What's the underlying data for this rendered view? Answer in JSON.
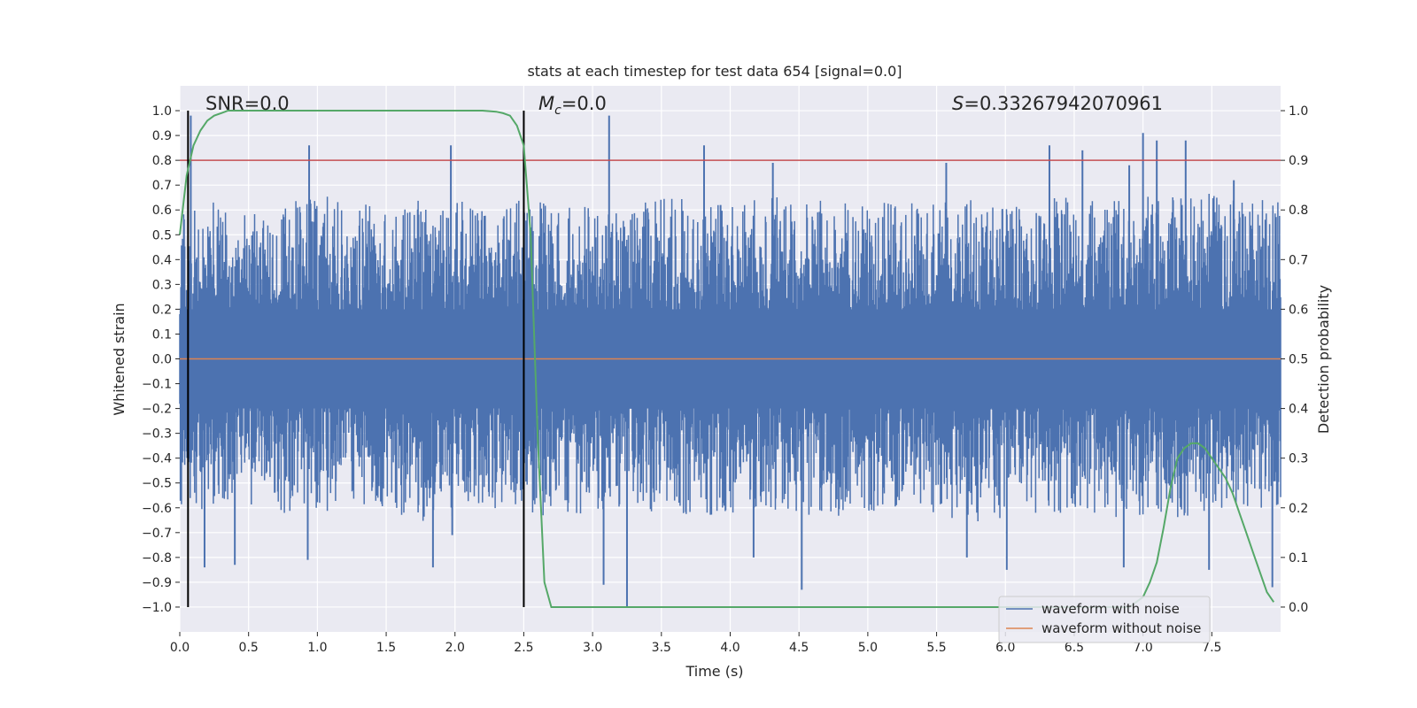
{
  "chart_data": {
    "type": "line",
    "title": "stats at each timestep for test data 654 [signal=0.0]",
    "xlabel": "Time (s)",
    "ylabel": "Whitened strain",
    "y2label": "Detection probability",
    "xlim": [
      0,
      8
    ],
    "ylim": [
      -1.1,
      1.1
    ],
    "y2lim": [
      -0.05,
      1.05
    ],
    "xticks": [
      "0.0",
      "0.5",
      "1.0",
      "1.5",
      "2.0",
      "2.5",
      "3.0",
      "3.5",
      "4.0",
      "4.5",
      "5.0",
      "5.5",
      "6.0",
      "6.5",
      "7.0",
      "7.5"
    ],
    "yticks": [
      "1.0",
      "0.9",
      "0.8",
      "0.7",
      "0.6",
      "0.5",
      "0.4",
      "0.3",
      "0.2",
      "0.1",
      "0.0",
      "−0.1",
      "−0.2",
      "−0.3",
      "−0.4",
      "−0.5",
      "−0.6",
      "−0.7",
      "−0.8",
      "−0.9",
      "−1.0"
    ],
    "y2ticks": [
      "1.0",
      "0.9",
      "0.8",
      "0.7",
      "0.6",
      "0.5",
      "0.4",
      "0.3",
      "0.2",
      "0.1",
      "0.0"
    ],
    "annotations": {
      "snr": "SNR=0.0",
      "mc_symbol": "M",
      "mc_sub": "c",
      "mc_value": "=0.0",
      "s_symbol": "S",
      "s_value": "=0.33267942070961"
    },
    "threshold": {
      "y": 0.8,
      "color": "#c44e52"
    },
    "vertical_lines": [
      {
        "x": 0.06,
        "ymin": -1.0,
        "ymax": 1.0
      },
      {
        "x": 2.5,
        "ymin": -1.0,
        "ymax": 1.0
      }
    ],
    "legend": {
      "placement": "lower-right",
      "entries": [
        {
          "label": "waveform with noise",
          "color": "#4c72b0"
        },
        {
          "label": "waveform without noise",
          "color": "#dd8452"
        }
      ]
    },
    "series": [
      {
        "name": "waveform with noise",
        "color": "#4c72b0",
        "envelope": {
          "x": [
            0.0,
            0.25,
            0.5,
            0.75,
            1.0,
            1.25,
            1.5,
            1.75,
            2.0,
            2.25,
            2.5,
            2.75,
            3.0,
            3.25,
            3.5,
            3.75,
            4.0,
            4.25,
            4.5,
            4.75,
            5.0,
            5.25,
            5.5,
            5.75,
            6.0,
            6.25,
            6.5,
            6.75,
            7.0,
            7.25,
            7.5,
            7.75,
            8.0
          ],
          "max": [
            0.6,
            0.66,
            0.6,
            0.64,
            0.66,
            0.64,
            0.6,
            0.64,
            0.65,
            0.62,
            0.64,
            0.62,
            0.63,
            0.6,
            0.66,
            0.64,
            0.63,
            0.65,
            0.66,
            0.64,
            0.62,
            0.64,
            0.63,
            0.66,
            0.64,
            0.66,
            0.65,
            0.64,
            0.66,
            0.65,
            0.68,
            0.66,
            0.64
          ],
          "min": [
            -0.6,
            -0.62,
            -0.6,
            -0.64,
            -0.62,
            -0.6,
            -0.63,
            -0.66,
            -0.64,
            -0.6,
            -0.62,
            -0.64,
            -0.63,
            -0.6,
            -0.62,
            -0.64,
            -0.62,
            -0.63,
            -0.66,
            -0.64,
            -0.62,
            -0.6,
            -0.63,
            -0.66,
            -0.65,
            -0.63,
            -0.62,
            -0.64,
            -0.63,
            -0.65,
            -0.62,
            -0.6,
            -0.6
          ]
        },
        "spikes": [
          [
            0.08,
            0.98
          ],
          [
            0.18,
            -0.84
          ],
          [
            0.4,
            -0.83
          ],
          [
            0.94,
            0.86
          ],
          [
            0.93,
            -0.81
          ],
          [
            1.84,
            -0.84
          ],
          [
            1.97,
            0.86
          ],
          [
            1.98,
            -0.71
          ],
          [
            3.12,
            0.98
          ],
          [
            2.57,
            -0.57
          ],
          [
            3.08,
            -0.91
          ],
          [
            3.25,
            -1.0
          ],
          [
            3.81,
            0.86
          ],
          [
            3.93,
            0.62
          ],
          [
            4.17,
            -0.8
          ],
          [
            4.31,
            0.79
          ],
          [
            4.52,
            -0.93
          ],
          [
            5.57,
            0.79
          ],
          [
            5.72,
            -0.8
          ],
          [
            6.01,
            -0.85
          ],
          [
            6.32,
            0.86
          ],
          [
            6.56,
            0.84
          ],
          [
            6.86,
            -0.84
          ],
          [
            6.9,
            0.78
          ],
          [
            7.0,
            0.91
          ],
          [
            7.1,
            0.88
          ],
          [
            7.31,
            0.88
          ],
          [
            7.48,
            -0.85
          ],
          [
            7.66,
            0.72
          ],
          [
            7.94,
            -0.92
          ]
        ]
      },
      {
        "name": "waveform without noise",
        "color": "#dd8452",
        "x": [
          0,
          8
        ],
        "y": [
          0,
          0
        ]
      },
      {
        "name": "",
        "axis": "right",
        "color": "#55a868",
        "x": [
          0.0,
          0.05,
          0.1,
          0.15,
          0.2,
          0.25,
          0.3,
          0.35,
          0.4,
          0.5,
          0.7,
          1.0,
          1.5,
          2.0,
          2.2,
          2.3,
          2.35,
          2.4,
          2.45,
          2.5,
          2.55,
          2.6,
          2.65,
          2.7,
          2.8,
          3.0,
          4.0,
          5.0,
          6.0,
          6.5,
          6.9,
          7.0,
          7.05,
          7.1,
          7.15,
          7.2,
          7.25,
          7.3,
          7.35,
          7.4,
          7.45,
          7.5,
          7.55,
          7.6,
          7.65,
          7.7,
          7.75,
          7.8,
          7.85,
          7.9,
          7.95
        ],
        "y": [
          0.75,
          0.87,
          0.93,
          0.96,
          0.98,
          0.99,
          0.995,
          1.0,
          1.0,
          1.0,
          1.0,
          1.0,
          1.0,
          1.0,
          1.0,
          0.998,
          0.995,
          0.99,
          0.97,
          0.93,
          0.75,
          0.35,
          0.05,
          0.0,
          0.0,
          0.0,
          0.0,
          0.0,
          0.0,
          0.0,
          0.0,
          0.02,
          0.05,
          0.09,
          0.16,
          0.24,
          0.3,
          0.32,
          0.33,
          0.33,
          0.32,
          0.3,
          0.28,
          0.26,
          0.23,
          0.19,
          0.15,
          0.11,
          0.07,
          0.03,
          0.01
        ]
      }
    ]
  }
}
